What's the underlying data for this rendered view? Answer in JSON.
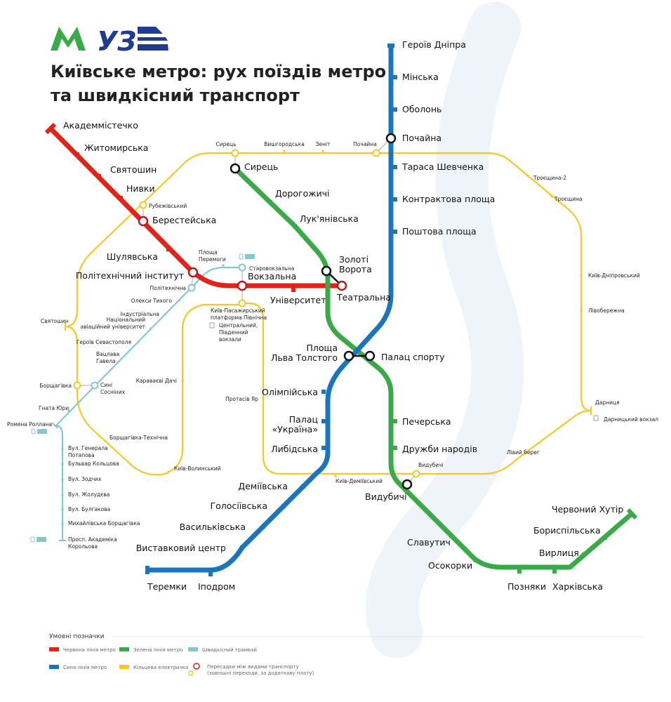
{
  "logos": {
    "metro": "M",
    "uz": "УЗ"
  },
  "title": [
    "Київське метро: рух поїздів метро",
    "та швидкісний транспорт"
  ],
  "colors": {
    "red": "#e2231a",
    "blue": "#1b75bc",
    "green": "#3aaa48",
    "ring": "#f5c823",
    "tram": "#84c8cc",
    "river": "#eef4fa"
  },
  "lines": {
    "red": {
      "stations": [
        {
          "name": "Академмістечко"
        },
        {
          "name": "Житомирська"
        },
        {
          "name": "Святошин"
        },
        {
          "name": "Нивки"
        },
        {
          "name": "Берестейська"
        },
        {
          "name": "Шулявська"
        },
        {
          "name": "Політехнічний інститут"
        },
        {
          "name": "Вокзальна"
        },
        {
          "name": "Університет"
        },
        {
          "name": "Театральна"
        }
      ]
    },
    "blue": {
      "stations": [
        {
          "name": "Героїв Дніпра"
        },
        {
          "name": "Мінська"
        },
        {
          "name": "Оболонь"
        },
        {
          "name": "Почайна"
        },
        {
          "name": "Тараса Шевченка"
        },
        {
          "name": "Контрактова площа"
        },
        {
          "name": "Поштова площа"
        },
        {
          "name": [
            "Площа",
            "Льва Толстого"
          ]
        },
        {
          "name": "Олімпійська"
        },
        {
          "name": [
            "Палац",
            "«Україна»"
          ]
        },
        {
          "name": "Либідська"
        },
        {
          "name": "Деміївська"
        },
        {
          "name": "Голосіївська"
        },
        {
          "name": "Васильківська"
        },
        {
          "name": "Виставковий центр"
        },
        {
          "name": "Іподром"
        },
        {
          "name": "Теремки"
        }
      ]
    },
    "green": {
      "stations": [
        {
          "name": "Сирець"
        },
        {
          "name": "Дорогожичі"
        },
        {
          "name": "Лук'янівська"
        },
        {
          "name": [
            "Золоті",
            "Ворота"
          ]
        },
        {
          "name": "Палац спорту"
        },
        {
          "name": "Печерська"
        },
        {
          "name": "Дружби народів"
        },
        {
          "name": "Видубичі"
        },
        {
          "name": "Славутич"
        },
        {
          "name": "Осокорки"
        },
        {
          "name": "Позняки"
        },
        {
          "name": "Харківська"
        },
        {
          "name": "Вирлиця"
        },
        {
          "name": "Бориспільська"
        },
        {
          "name": "Червоний Хутір"
        }
      ]
    },
    "ring": {
      "stations": [
        {
          "name": "Сирець"
        },
        {
          "name": "Вишгородська"
        },
        {
          "name": "Зеніт"
        },
        {
          "name": "Почайна"
        },
        {
          "name": "Троєщина-2"
        },
        {
          "name": "Троєщина"
        },
        {
          "name": "Київ-Дніпровський"
        },
        {
          "name": "Лівобережна"
        },
        {
          "name": "Дарниця"
        },
        {
          "name": "Дарницький вокзал"
        },
        {
          "name": "Лівий берег"
        },
        {
          "name": "Видубичі"
        },
        {
          "name": "Київ-Деміївський"
        },
        {
          "name": "Протасів Яр"
        },
        {
          "name": [
            "Київ-Пасажирський",
            "платформа Північна"
          ]
        },
        {
          "name": [
            "Центральний,",
            "Південний",
            "вокзали"
          ]
        },
        {
          "name": "Караваєві Дачі"
        },
        {
          "name": "Київ-Волинський"
        },
        {
          "name": "Борщагівка-Технічна"
        },
        {
          "name": "Борщагівка"
        },
        {
          "name": "Святошин"
        },
        {
          "name": "Рубежівський"
        }
      ]
    },
    "tram": {
      "stations": [
        {
          "name": "Старовокзальна"
        },
        {
          "name": [
            "Площа",
            "Перемоги"
          ]
        },
        {
          "name": "Політехнічна"
        },
        {
          "name": "Олекси Тихого"
        },
        {
          "name": "Індустріальна"
        },
        {
          "name": [
            "Національний",
            "авіаційний університет"
          ]
        },
        {
          "name": "Героїв Севастополя"
        },
        {
          "name": [
            "Вацлава",
            "Гавела"
          ]
        },
        {
          "name": [
            "Сині",
            "Сосніних"
          ]
        },
        {
          "name": "Гната Юри"
        },
        {
          "name": "Ромена Роллана"
        },
        {
          "name": [
            "Вул. Генерала",
            "Потапова"
          ]
        },
        {
          "name": "Бульвар Кольцова"
        },
        {
          "name": "Вул. Зодчих"
        },
        {
          "name": "Вул. Жолудєва"
        },
        {
          "name": "Вул. Булгакова"
        },
        {
          "name": "Михайлівська Борщагівка"
        },
        {
          "name": [
            "Просп. Академіка",
            "Корольова"
          ]
        }
      ]
    }
  },
  "legend": {
    "title": "Умовні позначки",
    "items": [
      {
        "label": "Червона лінія метро",
        "color": "#e2231a"
      },
      {
        "label": "Зелена лінія метро",
        "color": "#3aaa48"
      },
      {
        "label": "Швидкісний трамвай",
        "color": "#84c8cc"
      },
      {
        "label": "Синя лінія метро",
        "color": "#1b75bc"
      },
      {
        "label": "Кільцева електричка",
        "color": "#f5c823"
      }
    ],
    "transfer": [
      "Пересадки між видами транспорту",
      "(зовнішні переходи, за додаткову плату)"
    ]
  }
}
